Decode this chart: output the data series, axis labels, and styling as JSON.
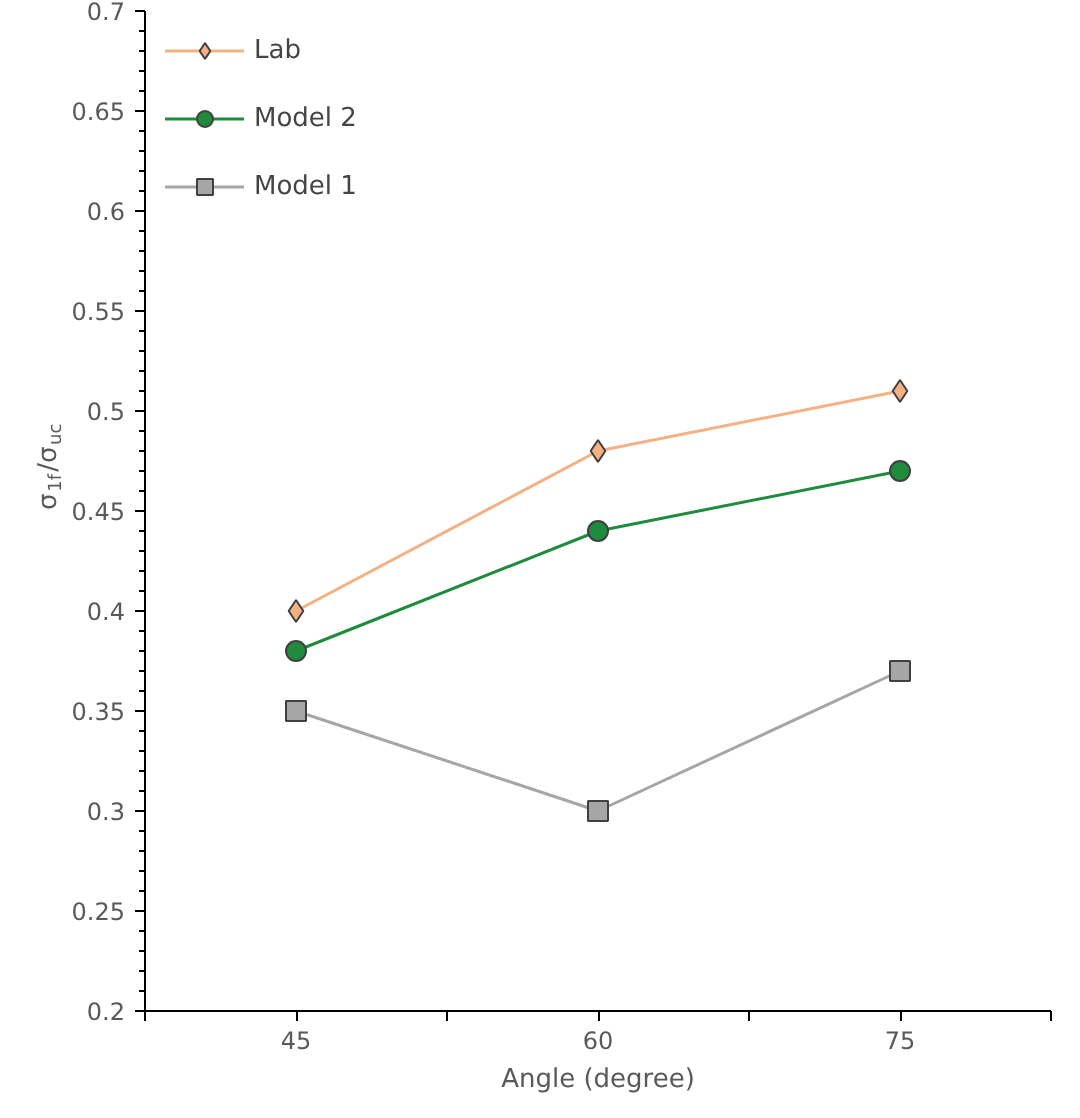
{
  "chart_data": {
    "type": "line",
    "xlabel": "Angle (degree)",
    "ylabel": "σ$_{1f}$/σ$_{uc}$",
    "x": [
      45,
      60,
      75
    ],
    "xlim": [
      37.5,
      82.5
    ],
    "xticks": [
      {
        "value": 37.5,
        "label": null
      },
      45,
      {
        "value": 52.5,
        "label": null
      },
      60,
      {
        "value": 67.5,
        "label": null
      },
      75,
      {
        "value": 82.5,
        "label": null
      }
    ],
    "ylim": [
      0.2,
      0.7
    ],
    "yticks": [
      0.2,
      0.25,
      0.3,
      0.35,
      0.4,
      0.45,
      0.5,
      0.55,
      0.6,
      0.65,
      0.7
    ],
    "grid": false,
    "legend": "top left",
    "series": [
      {
        "name": "Lab",
        "color": "#f4b183",
        "marker": "diamond",
        "values": [
          0.4,
          0.48,
          0.51
        ]
      },
      {
        "name": "Model 2",
        "color": "#1e8c3c",
        "marker": "circle",
        "values": [
          0.38,
          0.44,
          0.47
        ]
      },
      {
        "name": "Model 1",
        "color": "#a6a6a6",
        "marker": "square",
        "values": [
          0.35,
          0.3,
          0.37
        ]
      }
    ]
  }
}
